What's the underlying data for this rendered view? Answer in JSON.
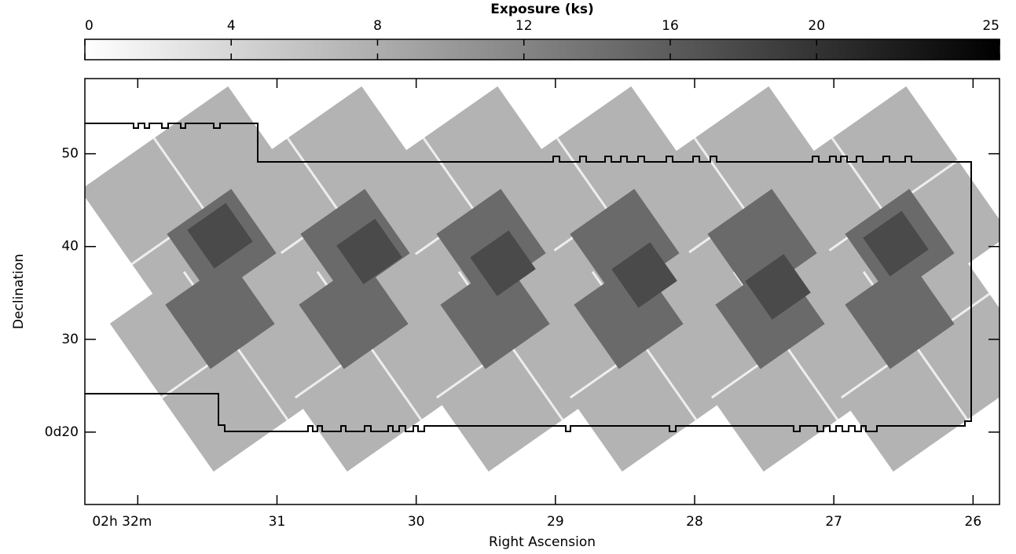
{
  "chart_data": {
    "type": "image",
    "colorbar": {
      "title": "Exposure (ks)",
      "lim": [
        0,
        25
      ],
      "ticks": [
        0,
        4,
        8,
        12,
        16,
        20,
        25
      ]
    },
    "x_label": "Right Ascension",
    "xlim": [
      32.38,
      25.81
    ],
    "xticks": [
      {
        "value": 32,
        "label": "02h 32m"
      },
      31,
      30,
      29,
      28,
      27,
      26
    ],
    "y_label": "Declination",
    "ylim": [
      12.2,
      58.1
    ],
    "yticks": [
      {
        "value": 20,
        "label": "0d20"
      },
      30,
      40,
      50
    ]
  }
}
